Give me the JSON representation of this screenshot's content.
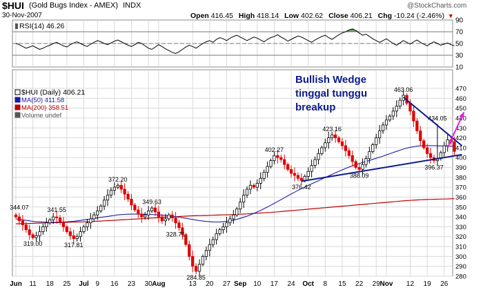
{
  "header": {
    "symbol": "$HUI",
    "name": "(Gold Bugs Index - AMEX)",
    "exchange": "INDX",
    "date": "30-Nov-2007",
    "open_label": "Open",
    "open": "416.45",
    "high_label": "High",
    "high": "418.14",
    "low_label": "Low",
    "low": "402.62",
    "close_label": "Close",
    "close": "406.21",
    "chg_label": "Chg",
    "chg": "-10.24 (-2.46%)",
    "watermark": "@StockCharts.com"
  },
  "annotation": [
    "Bullish Wedge",
    "tinggal tunggu",
    "breakup"
  ],
  "colors": {
    "grid": "#d9d9d9",
    "up": "#000000",
    "down": "#e00000",
    "ma50": "#1a1aa6",
    "ma200": "#c00000",
    "rsi": "#000000",
    "rsi_fill": "#3c8c3c",
    "annotation": "#0a1a8c",
    "wedge": "#0a1a8c",
    "arrow": "#e020e0"
  },
  "chart_data": [
    {
      "type": "line",
      "name": "RSI(14)",
      "legend": [
        {
          "label": "RSI(14)",
          "value": "46.26"
        }
      ],
      "ylim": [
        10,
        90
      ],
      "yticks": [
        10,
        30,
        50,
        70,
        90
      ],
      "reference_lines": [
        30,
        50,
        70
      ],
      "days": 130,
      "values": [
        50,
        48,
        45,
        42,
        44,
        46,
        43,
        40,
        42,
        45,
        47,
        50,
        52,
        49,
        46,
        44,
        48,
        51,
        53,
        50,
        47,
        45,
        49,
        52,
        55,
        53,
        50,
        48,
        51,
        54,
        56,
        53,
        50,
        47,
        45,
        48,
        52,
        50,
        46,
        42,
        40,
        44,
        48,
        45,
        41,
        38,
        35,
        33,
        36,
        40,
        44,
        47,
        45,
        42,
        46,
        50,
        53,
        55,
        52,
        57,
        60,
        58,
        55,
        59,
        62,
        64,
        61,
        58,
        55,
        58,
        61,
        59,
        56,
        53,
        57,
        60,
        62,
        65,
        61,
        58,
        54,
        57,
        60,
        63,
        61,
        58,
        55,
        52,
        56,
        59,
        62,
        64,
        60,
        57,
        61,
        65,
        68,
        70,
        73,
        75,
        72,
        68,
        64,
        66,
        62,
        58,
        55,
        52,
        55,
        58,
        54,
        50,
        47,
        51,
        55,
        52,
        49,
        53,
        56,
        52,
        49,
        46,
        50,
        53,
        50,
        47,
        49,
        51,
        48,
        46.26
      ]
    },
    {
      "type": "candlestick",
      "name": "$HUI (Daily)",
      "legend": [
        {
          "label": "$HUI (Daily)",
          "value": "406.21"
        },
        {
          "label": "MA(50)",
          "value": "411.58"
        },
        {
          "label": "MA(200)",
          "value": "358.51"
        },
        {
          "label": "Volume undef",
          "value": ""
        }
      ],
      "ylim": [
        280,
        470
      ],
      "yticks": [
        280,
        290,
        300,
        310,
        320,
        330,
        340,
        350,
        360,
        370,
        380,
        390,
        400,
        410,
        420,
        430,
        440,
        450,
        460,
        470
      ],
      "xticks": [
        {
          "label": "Jun",
          "day": 0
        },
        {
          "label": "11",
          "day": 5
        },
        {
          "label": "18",
          "day": 10
        },
        {
          "label": "25",
          "day": 15
        },
        {
          "label": "Jul",
          "day": 20
        },
        {
          "label": "9",
          "day": 24
        },
        {
          "label": "16",
          "day": 29
        },
        {
          "label": "23",
          "day": 34
        },
        {
          "label": "30",
          "day": 39
        },
        {
          "label": "Aug",
          "day": 42
        },
        {
          "label": "13",
          "day": 52
        },
        {
          "label": "20",
          "day": 57
        },
        {
          "label": "27",
          "day": 62
        },
        {
          "label": "Sep",
          "day": 66
        },
        {
          "label": "10",
          "day": 71
        },
        {
          "label": "17",
          "day": 76
        },
        {
          "label": "24",
          "day": 81
        },
        {
          "label": "Oct",
          "day": 86
        },
        {
          "label": "8",
          "day": 91
        },
        {
          "label": "15",
          "day": 96
        },
        {
          "label": "22",
          "day": 101
        },
        {
          "label": "29",
          "day": 106
        },
        {
          "label": "Nov",
          "day": 109
        },
        {
          "label": "12",
          "day": 116
        },
        {
          "label": "19",
          "day": 121
        },
        {
          "label": "26",
          "day": 126
        }
      ],
      "closes": [
        340,
        336,
        332,
        327,
        322,
        319,
        321,
        325,
        330,
        334,
        337,
        340,
        339,
        335,
        330,
        325,
        321,
        318,
        320,
        325,
        330,
        334,
        338,
        342,
        346,
        351,
        357,
        362,
        367,
        370,
        372,
        368,
        363,
        358,
        352,
        347,
        343,
        340,
        342,
        346,
        349,
        345,
        340,
        336,
        338,
        342,
        339,
        334,
        329,
        322,
        312,
        300,
        290,
        285,
        292,
        300,
        306,
        312,
        317,
        323,
        327,
        330,
        334,
        338,
        342,
        348,
        355,
        362,
        368,
        372,
        370,
        374,
        379,
        385,
        391,
        397,
        402,
        400,
        398,
        393,
        388,
        384,
        382,
        379,
        377,
        381,
        386,
        392,
        398,
        404,
        410,
        415,
        420,
        423,
        420,
        416,
        412,
        407,
        402,
        396,
        390,
        388,
        393,
        399,
        406,
        413,
        420,
        427,
        433,
        438,
        442,
        447,
        452,
        458,
        463,
        455,
        447,
        437,
        427,
        417,
        410,
        404,
        400,
        397,
        399,
        405,
        412,
        418,
        416,
        406.21
      ],
      "ma50": [
        338,
        337.5,
        337,
        336.5,
        336,
        335.5,
        335,
        335,
        334.8,
        334.6,
        334.5,
        334.5,
        334.6,
        334.7,
        334.8,
        335,
        335.3,
        335.6,
        336,
        336.5,
        337,
        337.5,
        338,
        338.5,
        339,
        339.5,
        340,
        340.5,
        341,
        341.5,
        342,
        342.3,
        342.5,
        342.7,
        342.8,
        342.8,
        342.8,
        342.7,
        342.6,
        342.5,
        342.4,
        342.2,
        342,
        341.7,
        341.4,
        341,
        340.6,
        340.2,
        339.7,
        339.2,
        338.6,
        338,
        337.4,
        336.8,
        336.2,
        335.8,
        335.4,
        335.1,
        334.9,
        334.8,
        334.9,
        335.1,
        335.5,
        336,
        336.7,
        337.5,
        338.5,
        339.6,
        340.8,
        342.1,
        343.5,
        345,
        346.6,
        348.3,
        350,
        351.8,
        353.7,
        355.6,
        357.5,
        359.4,
        361.3,
        363.2,
        365,
        366.8,
        368.5,
        370.2,
        371.8,
        373.4,
        375,
        376.6,
        378.2,
        379.8,
        381.4,
        383,
        384.6,
        386.1,
        387.6,
        389,
        390.4,
        391.6,
        392.8,
        393.9,
        395,
        396,
        397.1,
        398.2,
        399.3,
        400.4,
        401.5,
        402.7,
        403.9,
        405.1,
        406.3,
        407.5,
        408.6,
        409.6,
        410.4,
        411,
        411.5,
        411.8,
        412,
        412.1,
        412.1,
        412,
        411.9,
        411.8,
        411.7,
        411.6,
        411.6,
        411.58
      ],
      "ma200": [
        333,
        333.1,
        333.2,
        333.3,
        333.4,
        333.5,
        333.6,
        333.7,
        333.8,
        333.9,
        334,
        334.1,
        334.2,
        334.3,
        334.4,
        334.5,
        334.6,
        334.7,
        334.8,
        334.9,
        335,
        335.1,
        335.2,
        335.4,
        335.6,
        335.8,
        336,
        336.2,
        336.4,
        336.6,
        336.8,
        337,
        337.2,
        337.4,
        337.6,
        337.8,
        338,
        338.2,
        338.4,
        338.6,
        338.8,
        339,
        339.2,
        339.4,
        339.6,
        339.8,
        340,
        340.2,
        340.4,
        340.6,
        340.8,
        341,
        341.1,
        341.2,
        341.3,
        341.4,
        341.5,
        341.6,
        341.7,
        341.8,
        341.9,
        342,
        342.1,
        342.2,
        342.3,
        342.5,
        342.7,
        342.9,
        343.1,
        343.3,
        343.5,
        343.7,
        343.9,
        344.1,
        344.3,
        344.5,
        344.8,
        345.1,
        345.4,
        345.7,
        346,
        346.3,
        346.6,
        346.9,
        347.2,
        347.5,
        347.8,
        348.1,
        348.4,
        348.7,
        349,
        349.3,
        349.6,
        349.9,
        350.2,
        350.5,
        350.8,
        351.1,
        351.4,
        351.7,
        352,
        352.3,
        352.6,
        352.9,
        353.2,
        353.5,
        353.8,
        354.1,
        354.4,
        354.7,
        355,
        355.3,
        355.6,
        355.9,
        356.2,
        356.5,
        356.7,
        356.9,
        357.1,
        357.3,
        357.5,
        357.6,
        357.7,
        357.8,
        357.9,
        358,
        358.1,
        358.2,
        358.35,
        358.51
      ],
      "price_labels": [
        {
          "text": "344.07",
          "day": 1,
          "value": 344.07,
          "pos": "above"
        },
        {
          "text": "319.00",
          "day": 5,
          "value": 319.0,
          "pos": "below"
        },
        {
          "text": "341.55",
          "day": 12,
          "value": 341.55,
          "pos": "above"
        },
        {
          "text": "317.81",
          "day": 17,
          "value": 317.81,
          "pos": "below"
        },
        {
          "text": "372.20",
          "day": 30,
          "value": 372.2,
          "pos": "above"
        },
        {
          "text": "349.63",
          "day": 40,
          "value": 349.63,
          "pos": "above"
        },
        {
          "text": "328.71",
          "day": 47,
          "value": 328.71,
          "pos": "below"
        },
        {
          "text": "284.85",
          "day": 53,
          "value": 284.85,
          "pos": "below"
        },
        {
          "text": "402.27",
          "day": 76,
          "value": 402.27,
          "pos": "above"
        },
        {
          "text": "376.42",
          "day": 84,
          "value": 376.42,
          "pos": "below"
        },
        {
          "text": "423.16",
          "day": 93,
          "value": 423.16,
          "pos": "above"
        },
        {
          "text": "388.09",
          "day": 101,
          "value": 388.09,
          "pos": "below"
        },
        {
          "text": "463.06",
          "day": 114,
          "value": 463.06,
          "pos": "above"
        },
        {
          "text": "434.05",
          "day": 124,
          "value": 434.05,
          "pos": "above"
        },
        {
          "text": "396.37",
          "day": 123,
          "value": 396.37,
          "pos": "below"
        }
      ],
      "trendlines": [
        {
          "name": "upper",
          "from": {
            "day": 114,
            "value": 461
          },
          "to": {
            "day": 130,
            "value": 412
          }
        },
        {
          "name": "lower",
          "from": {
            "day": 84,
            "value": 376
          },
          "to": {
            "day": 130,
            "value": 403
          }
        }
      ],
      "arrow": {
        "from": {
          "day": 127,
          "value": 410
        },
        "to": {
          "day": 131,
          "value": 446
        }
      }
    }
  ]
}
